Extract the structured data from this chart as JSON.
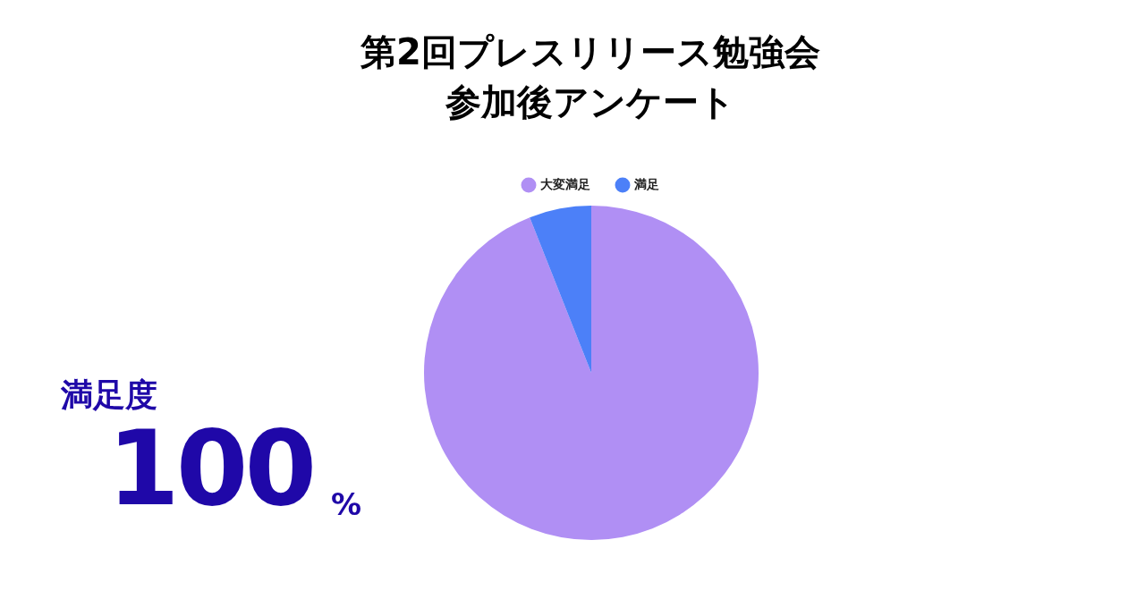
{
  "chart_data": {
    "type": "pie",
    "title": "第2回プレスリリース勉強会参加後アンケート",
    "categories": [
      "大変満足",
      "満足"
    ],
    "values": [
      94,
      6
    ],
    "colors": [
      "#b08ff4",
      "#4c80f8"
    ],
    "legend": "top",
    "annotations": [
      "満足度",
      "100",
      "%"
    ]
  }
}
